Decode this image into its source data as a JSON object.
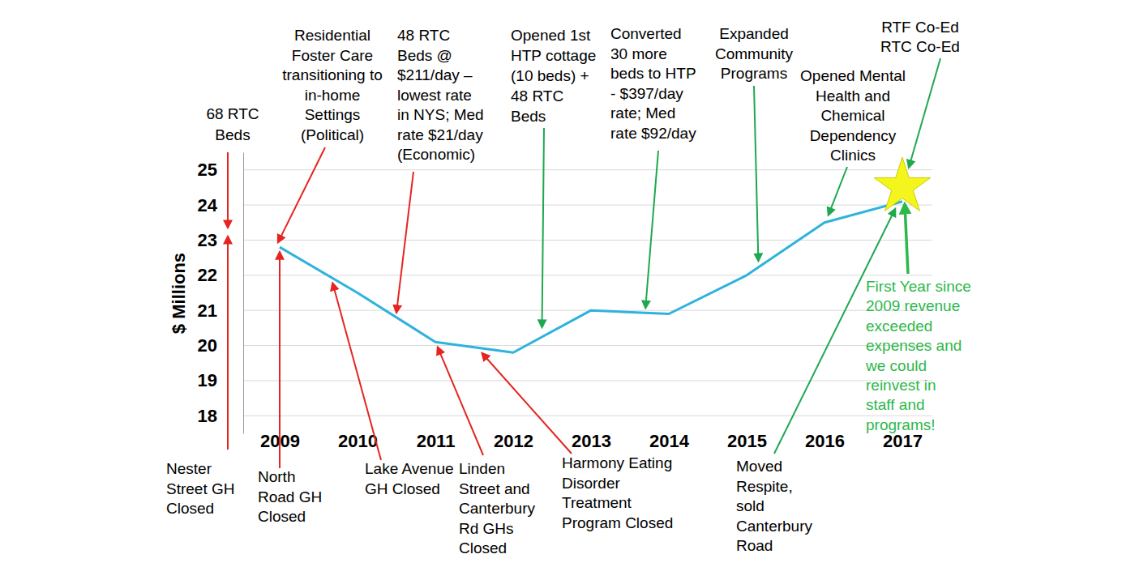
{
  "chart_data": {
    "type": "line",
    "categories": [
      "2009",
      "2010",
      "2011",
      "2012",
      "2013",
      "2014",
      "2015",
      "2016",
      "2017"
    ],
    "values": [
      22.8,
      21.5,
      20.1,
      19.8,
      21.0,
      20.9,
      22.0,
      23.5,
      24.1
    ],
    "color": "#2eb3dd",
    "y_label": "$ Millions",
    "ylim": [
      17.5,
      25.5
    ],
    "yticks": [
      18,
      19,
      20,
      21,
      22,
      23,
      24,
      25
    ],
    "grid": true,
    "annotations": [
      {
        "text": [
          "68 RTC",
          "Beds"
        ],
        "color": "#e52521"
      },
      {
        "text": [
          "Residential",
          "Foster Care",
          "transitioning to",
          "in-home",
          "Settings",
          "(Political)"
        ],
        "color": "#e52521"
      },
      {
        "text": [
          "48 RTC",
          "Beds @",
          "$211/day –",
          "lowest rate",
          "in NYS; Med",
          "rate $21/day",
          "(Economic)"
        ],
        "color": "#e52521"
      },
      {
        "text": [
          "Opened 1st",
          "HTP cottage",
          "(10 beds) +",
          "48 RTC",
          "Beds"
        ],
        "color": "#1fa84f"
      },
      {
        "text": [
          "Converted",
          "30 more",
          "beds to HTP",
          "- $397/day",
          "rate; Med",
          "rate $92/day"
        ],
        "color": "#1fa84f"
      },
      {
        "text": [
          "Expanded",
          "Community",
          "Programs"
        ],
        "color": "#1fa84f"
      },
      {
        "text": [
          "Opened Mental",
          "Health and",
          "Chemical",
          "Dependency",
          "Clinics"
        ],
        "color": "#1fa84f"
      },
      {
        "text": [
          "RTF Co-Ed",
          "RTC Co-Ed"
        ],
        "color": "#1fa84f"
      },
      {
        "text": [
          "Nester",
          "Street GH",
          "Closed"
        ],
        "color": "#e52521"
      },
      {
        "text": [
          "North",
          "Road GH",
          "Closed"
        ],
        "color": "#e52521"
      },
      {
        "text": [
          "Lake Avenue",
          "GH Closed"
        ],
        "color": "#e52521"
      },
      {
        "text": [
          "Linden",
          "Street and",
          "Canterbury",
          "Rd GHs",
          "Closed"
        ],
        "color": "#e52521"
      },
      {
        "text": [
          "Harmony Eating",
          "Disorder",
          "Treatment",
          "Program Closed"
        ],
        "color": "#e52521"
      },
      {
        "text": [
          "Moved",
          "Respite,",
          "sold",
          "Canterbury",
          "Road"
        ],
        "color": "#1fa84f"
      }
    ],
    "highlight": {
      "text": [
        "First Year since",
        "2009 revenue",
        "exceeded",
        "expenses and",
        "we could",
        "reinvest in",
        "staff and",
        "programs!"
      ],
      "color": "#2db84a"
    }
  }
}
